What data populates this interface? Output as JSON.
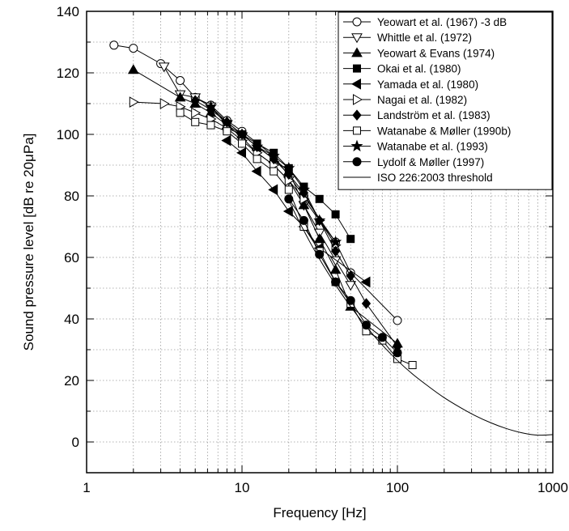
{
  "chart_data": {
    "type": "line",
    "x_scale": "log",
    "xlim": [
      1,
      1000
    ],
    "ylim": [
      -10,
      140
    ],
    "xlabel": "Frequency [Hz]",
    "ylabel": "Sound pressure level [dB re 20μPa]",
    "x_ticks": [
      {
        "value": 1,
        "label": "1"
      },
      {
        "value": 10,
        "label": "10"
      },
      {
        "value": 100,
        "label": "100"
      },
      {
        "value": 1000,
        "label": "1000"
      }
    ],
    "y_ticks": [
      {
        "value": 0,
        "label": "0"
      },
      {
        "value": 20,
        "label": "20"
      },
      {
        "value": 40,
        "label": "40"
      },
      {
        "value": 60,
        "label": "60"
      },
      {
        "value": 80,
        "label": "80"
      },
      {
        "value": 100,
        "label": "100"
      },
      {
        "value": 120,
        "label": "120"
      },
      {
        "value": 140,
        "label": "140"
      }
    ],
    "grid": true,
    "legend_position": "top-right",
    "series": [
      {
        "name": "Yeowart et al. (1967) -3 dB",
        "marker": "circle",
        "filled": false,
        "x": [
          1.5,
          2,
          3,
          4,
          5,
          6.3,
          8,
          10,
          16,
          25,
          40,
          50,
          100
        ],
        "y": [
          129,
          128,
          123,
          117.5,
          112,
          109.5,
          104.5,
          101,
          93,
          80,
          65,
          55,
          39.5
        ]
      },
      {
        "name": "Whittle et al. (1972)",
        "marker": "triangle-down",
        "filled": false,
        "x": [
          3.15,
          4,
          5,
          6.3,
          8,
          10,
          12.5,
          16,
          20,
          25,
          31.5,
          40,
          50
        ],
        "y": [
          122,
          113,
          112,
          109,
          103,
          99,
          94,
          90,
          85,
          77,
          68,
          59,
          51
        ]
      },
      {
        "name": "Yeowart & Evans (1974)",
        "marker": "triangle-up",
        "filled": true,
        "x": [
          2,
          4,
          5,
          6.3,
          8,
          10,
          12.5,
          16,
          20,
          25,
          31.5,
          40,
          50,
          100
        ],
        "y": [
          121,
          112,
          110,
          107,
          103,
          100,
          96,
          92,
          88,
          77,
          66,
          56,
          44,
          32
        ]
      },
      {
        "name": "Okai et al. (1980)",
        "marker": "square",
        "filled": true,
        "x": [
          8,
          10,
          12.5,
          16,
          20,
          25,
          31.5,
          40,
          50
        ],
        "y": [
          102,
          100,
          97,
          94,
          89,
          83,
          79,
          74,
          66
        ]
      },
      {
        "name": "Yamada et al. (1980)",
        "marker": "triangle-left",
        "filled": true,
        "x": [
          8,
          10,
          12.5,
          16,
          20,
          25,
          31.5,
          63
        ],
        "y": [
          98,
          94,
          88,
          82,
          75,
          70,
          63,
          52
        ]
      },
      {
        "name": "Nagai et al. (1982)",
        "marker": "triangle-right",
        "filled": false,
        "x": [
          2,
          3.15,
          4,
          5,
          6.3,
          8,
          10,
          12.5,
          16,
          20,
          25,
          31.5,
          40
        ],
        "y": [
          110.5,
          110,
          109,
          107,
          105,
          102,
          98,
          94,
          90,
          85,
          79,
          72,
          64
        ]
      },
      {
        "name": "Landström et al. (1983)",
        "marker": "diamond",
        "filled": true,
        "x": [
          5,
          6.3,
          8,
          10,
          12.5,
          16,
          20,
          25,
          31.5,
          40,
          50,
          63,
          100
        ],
        "y": [
          111,
          108,
          104,
          100,
          96,
          92,
          87,
          81,
          72,
          62,
          54,
          45,
          31
        ]
      },
      {
        "name": "Watanabe & Møller (1990b)",
        "marker": "square",
        "filled": false,
        "x": [
          4,
          5,
          6.3,
          8,
          10,
          12.5,
          16,
          20,
          25,
          31.5,
          40,
          50,
          63,
          80,
          100,
          125
        ],
        "y": [
          107,
          104,
          103,
          101,
          97,
          92,
          88,
          82,
          70,
          62,
          52,
          45,
          36,
          33,
          27,
          25
        ]
      },
      {
        "name": "Watanabe et al. (1993)",
        "marker": "star",
        "filled": true,
        "x": [
          6.3,
          8,
          10,
          12.5,
          16,
          20,
          25,
          31.5,
          40
        ],
        "y": [
          109,
          104,
          100,
          96,
          93,
          89,
          82,
          72,
          65
        ]
      },
      {
        "name": "Lydolf & Møller (1997)",
        "marker": "circle",
        "filled": true,
        "x": [
          20,
          25,
          31.5,
          40,
          50,
          63,
          80,
          100
        ],
        "y": [
          79,
          72,
          61,
          52,
          46,
          38,
          34,
          29
        ]
      },
      {
        "name": "ISO 226:2003 threshold",
        "marker": "none",
        "filled": false,
        "x": [
          20,
          25,
          31.5,
          40,
          50,
          63,
          80,
          100,
          125,
          160,
          200,
          250,
          315,
          400,
          500,
          630,
          800,
          1000
        ],
        "y": [
          78.5,
          68.7,
          59.5,
          51.1,
          44.0,
          37.5,
          31.5,
          26.5,
          22.1,
          17.9,
          14.4,
          11.4,
          8.6,
          6.2,
          4.4,
          3.0,
          2.2,
          2.4
        ]
      }
    ]
  }
}
